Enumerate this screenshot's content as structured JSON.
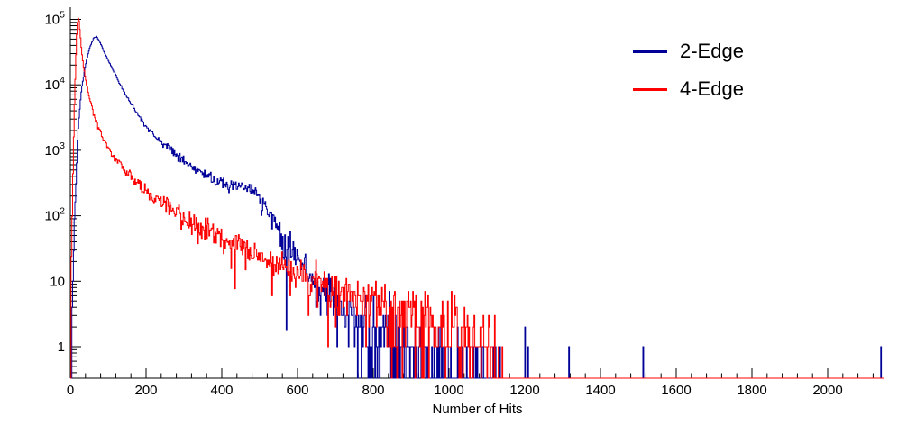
{
  "chart_data": {
    "type": "line",
    "subtype": "histogram-steps",
    "title": "",
    "xlabel": "Number of Hits",
    "ylabel": "",
    "background": "#ffffff",
    "axis_color": "#000000",
    "y_scale": "log",
    "x_range": [
      0,
      2150
    ],
    "y_range": [
      0.33,
      135000
    ],
    "x_major_ticks": [
      0,
      200,
      400,
      600,
      800,
      1000,
      1200,
      1400,
      1600,
      1800,
      2000
    ],
    "x_minor_step": 40,
    "y_major_ticks": [
      1,
      10,
      100,
      1000,
      10000,
      100000
    ],
    "grid": false,
    "legend": {
      "position": "top-right",
      "items": [
        {
          "label": "2-Edge",
          "color": "#000099"
        },
        {
          "label": "4-Edge",
          "color": "#ff0000"
        }
      ]
    },
    "series": [
      {
        "name": "2-Edge",
        "color": "#000099",
        "bin_width": 2,
        "envelope": [
          [
            4,
            2
          ],
          [
            10,
            50
          ],
          [
            20,
            2000
          ],
          [
            30,
            9000
          ],
          [
            40,
            20000
          ],
          [
            50,
            35000
          ],
          [
            62,
            52000
          ],
          [
            70,
            55000
          ],
          [
            80,
            42000
          ],
          [
            90,
            31000
          ],
          [
            100,
            24000
          ],
          [
            115,
            16000
          ],
          [
            130,
            10500
          ],
          [
            145,
            7200
          ],
          [
            160,
            5200
          ],
          [
            180,
            3400
          ],
          [
            200,
            2300
          ],
          [
            220,
            1750
          ],
          [
            240,
            1380
          ],
          [
            260,
            1050
          ],
          [
            280,
            840
          ],
          [
            300,
            700
          ],
          [
            320,
            580
          ],
          [
            340,
            480
          ],
          [
            360,
            420
          ],
          [
            380,
            370
          ],
          [
            400,
            330
          ],
          [
            420,
            300
          ],
          [
            440,
            285
          ],
          [
            460,
            270
          ],
          [
            480,
            240
          ],
          [
            500,
            185
          ],
          [
            515,
            135
          ],
          [
            530,
            100
          ],
          [
            545,
            70
          ],
          [
            560,
            48
          ],
          [
            575,
            34
          ],
          [
            590,
            26
          ],
          [
            610,
            18
          ],
          [
            630,
            13
          ],
          [
            650,
            9.5
          ],
          [
            670,
            7
          ],
          [
            700,
            4.8
          ],
          [
            730,
            3.4
          ],
          [
            760,
            2.6
          ],
          [
            800,
            2.0
          ],
          [
            840,
            1.5
          ],
          [
            880,
            1.15
          ],
          [
            920,
            0.85
          ],
          [
            960,
            0.6
          ],
          [
            1000,
            0.45
          ],
          [
            1050,
            0.3
          ],
          [
            1100,
            0.22
          ],
          [
            1150,
            0.15
          ],
          [
            1200,
            0.12
          ],
          [
            1240,
            0.1
          ],
          [
            1248,
            0.02
          ]
        ],
        "extra_spikes": [
          [
            1317,
            1
          ],
          [
            1512,
            1
          ],
          [
            2140,
            1
          ]
        ]
      },
      {
        "name": "4-Edge",
        "color": "#ff0000",
        "bin_width": 2,
        "envelope": [
          [
            2,
            15
          ],
          [
            5,
            120
          ],
          [
            8,
            900
          ],
          [
            11,
            5000
          ],
          [
            14,
            20000
          ],
          [
            17,
            60000
          ],
          [
            20,
            110000
          ],
          [
            23,
            95000
          ],
          [
            26,
            60000
          ],
          [
            30,
            32000
          ],
          [
            35,
            19000
          ],
          [
            40,
            12500
          ],
          [
            46,
            8200
          ],
          [
            52,
            5800
          ],
          [
            60,
            3900
          ],
          [
            70,
            2600
          ],
          [
            80,
            1850
          ],
          [
            90,
            1400
          ],
          [
            100,
            1080
          ],
          [
            115,
            790
          ],
          [
            130,
            610
          ],
          [
            150,
            450
          ],
          [
            170,
            340
          ],
          [
            200,
            235
          ],
          [
            230,
            175
          ],
          [
            260,
            135
          ],
          [
            300,
            95
          ],
          [
            340,
            70
          ],
          [
            380,
            52
          ],
          [
            420,
            40
          ],
          [
            460,
            31
          ],
          [
            500,
            24
          ],
          [
            540,
            18.5
          ],
          [
            580,
            14.5
          ],
          [
            620,
            11.5
          ],
          [
            660,
            9
          ],
          [
            700,
            7.2
          ],
          [
            740,
            6
          ],
          [
            780,
            5
          ],
          [
            820,
            4.3
          ],
          [
            860,
            3.7
          ],
          [
            900,
            3.2
          ],
          [
            940,
            2.8
          ],
          [
            980,
            2.4
          ],
          [
            1020,
            2.0
          ],
          [
            1060,
            1.6
          ],
          [
            1090,
            1.2
          ],
          [
            1110,
            0.9
          ],
          [
            1130,
            0.5
          ],
          [
            1145,
            0.1
          ]
        ],
        "extra_spikes": []
      }
    ]
  }
}
